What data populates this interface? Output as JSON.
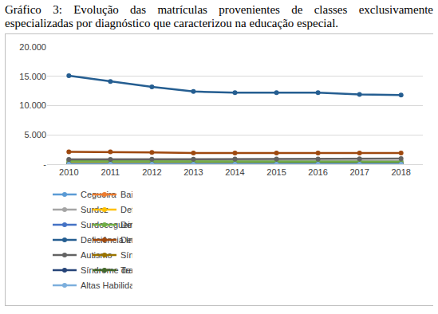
{
  "chart_data": {
    "type": "line",
    "title": "Gráfico 3: Evolução das matrículas provenientes de classes exclusivamente especializadas por diagnóstico que caracterizou na educação especial.",
    "categories": [
      "2010",
      "2011",
      "2012",
      "2013",
      "2014",
      "2015",
      "2016",
      "2017",
      "2018"
    ],
    "series": [
      {
        "name": "Cegueira",
        "color": "#5B9BD5",
        "values": [
          150,
          140,
          130,
          120,
          120,
          110,
          110,
          100,
          100
        ]
      },
      {
        "name": "Baixa Visão",
        "color": "#ED7D31",
        "values": [
          100,
          100,
          90,
          90,
          80,
          80,
          80,
          70,
          70
        ]
      },
      {
        "name": "Surdez",
        "color": "#A5A5A5",
        "values": [
          700,
          680,
          650,
          600,
          580,
          560,
          540,
          520,
          500
        ]
      },
      {
        "name": "Deficiência Auditiva",
        "color": "#FFC000",
        "values": [
          200,
          190,
          180,
          170,
          160,
          150,
          150,
          140,
          140
        ]
      },
      {
        "name": "Surdocegueira",
        "color": "#4472C4",
        "values": [
          30,
          30,
          30,
          30,
          30,
          30,
          30,
          30,
          30
        ]
      },
      {
        "name": "Deficiência Física",
        "color": "#70AD47",
        "values": [
          500,
          490,
          470,
          450,
          440,
          430,
          420,
          410,
          400
        ]
      },
      {
        "name": "Deficiência Intelectual",
        "color": "#255E91",
        "values": [
          15100,
          14100,
          13200,
          12400,
          12200,
          12200,
          12200,
          11900,
          11800
        ]
      },
      {
        "name": "Deficiência Multipla",
        "color": "#9E480E",
        "values": [
          2100,
          2100,
          2000,
          1900,
          1900,
          1900,
          1900,
          1900,
          1900
        ]
      },
      {
        "name": "Autismo",
        "color": "#636363",
        "values": [
          800,
          820,
          840,
          850,
          870,
          890,
          900,
          920,
          950
        ]
      },
      {
        "name": "Síndrome de Asperger",
        "color": "#997300",
        "values": [
          50,
          50,
          50,
          50,
          50,
          50,
          50,
          50,
          50
        ]
      },
      {
        "name": "Síndrome de Rett",
        "color": "#264478",
        "values": [
          20,
          20,
          20,
          20,
          20,
          20,
          20,
          20,
          20
        ]
      },
      {
        "name": "Transt Desint da Infancia",
        "color": "#43682B",
        "values": [
          50,
          50,
          50,
          50,
          50,
          50,
          50,
          50,
          50
        ]
      },
      {
        "name": "Altas Habilidades",
        "color": "#7CAFDD",
        "values": [
          10,
          10,
          10,
          10,
          10,
          10,
          10,
          10,
          10
        ]
      }
    ],
    "ylim": [
      0,
      20000
    ],
    "yticks": [
      {
        "value": 0,
        "label": "-"
      },
      {
        "value": 5000,
        "label": "5.000"
      },
      {
        "value": 10000,
        "label": "10.000"
      },
      {
        "value": 15000,
        "label": "15.000"
      },
      {
        "value": 20000,
        "label": "20.000"
      }
    ],
    "grid": true,
    "legend": "bottom",
    "marker": "circle"
  }
}
